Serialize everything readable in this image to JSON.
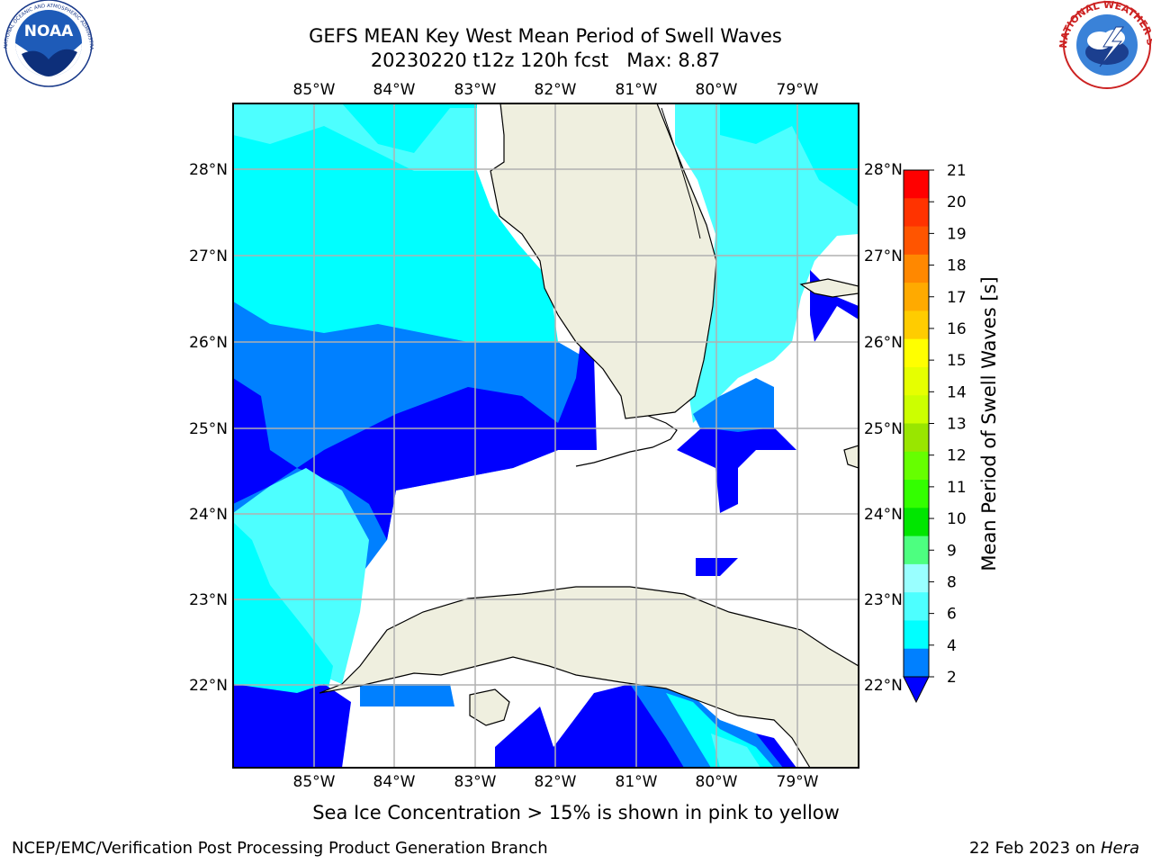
{
  "title": {
    "line1": "GEFS MEAN Key West Mean Period of Swell Waves",
    "line2": "20230220 t12z 120h fcst   Max: 8.87"
  },
  "map": {
    "lon_labels": [
      "85°W",
      "84°W",
      "83°W",
      "82°W",
      "81°W",
      "80°W",
      "79°W"
    ],
    "lat_labels": [
      "28°N",
      "27°N",
      "26°N",
      "25°N",
      "24°N",
      "23°N",
      "22°N"
    ],
    "colors": {
      "land": "#efefdf",
      "band_2_4": "#0080ff",
      "band_lt2": "#0000ff",
      "band_4_6": "#00ffff",
      "band_6_8": "#4dffff",
      "band_8_9": "#99ffff",
      "grid": "#b0b0b0"
    }
  },
  "colorbar": {
    "label": "Mean Period of Swell Waves [s]",
    "ticks": [
      "2",
      "4",
      "6",
      "8",
      "9",
      "10",
      "11",
      "12",
      "13",
      "14",
      "15",
      "16",
      "17",
      "18",
      "19",
      "20",
      "21"
    ],
    "colors": [
      "#0080ff",
      "#00ffff",
      "#4dffff",
      "#99ffff",
      "#4dff80",
      "#00e600",
      "#33ff00",
      "#66ff00",
      "#99e600",
      "#ccff00",
      "#e6ff00",
      "#ffff00",
      "#ffcc00",
      "#ffaa00",
      "#ff8800",
      "#ff5500",
      "#ff3300",
      "#ff0000"
    ],
    "under_color": "#0000ff"
  },
  "logos": {
    "noaa": "NOAA",
    "nws_ring": "NATIONAL WEATHER SERVICE",
    "noaa_ring": "NATIONAL OCEANIC AND ATMOSPHERIC ADMINISTRATION · U.S. DEPARTMENT OF COMMERCE"
  },
  "footer": {
    "sea_ice_note": "Sea Ice Concentration > 15% is shown in pink to yellow",
    "branch": "NCEP/EMC/Verification Post Processing Product Generation Branch",
    "date": "22 Feb 2023 on",
    "machine": "Hera"
  }
}
